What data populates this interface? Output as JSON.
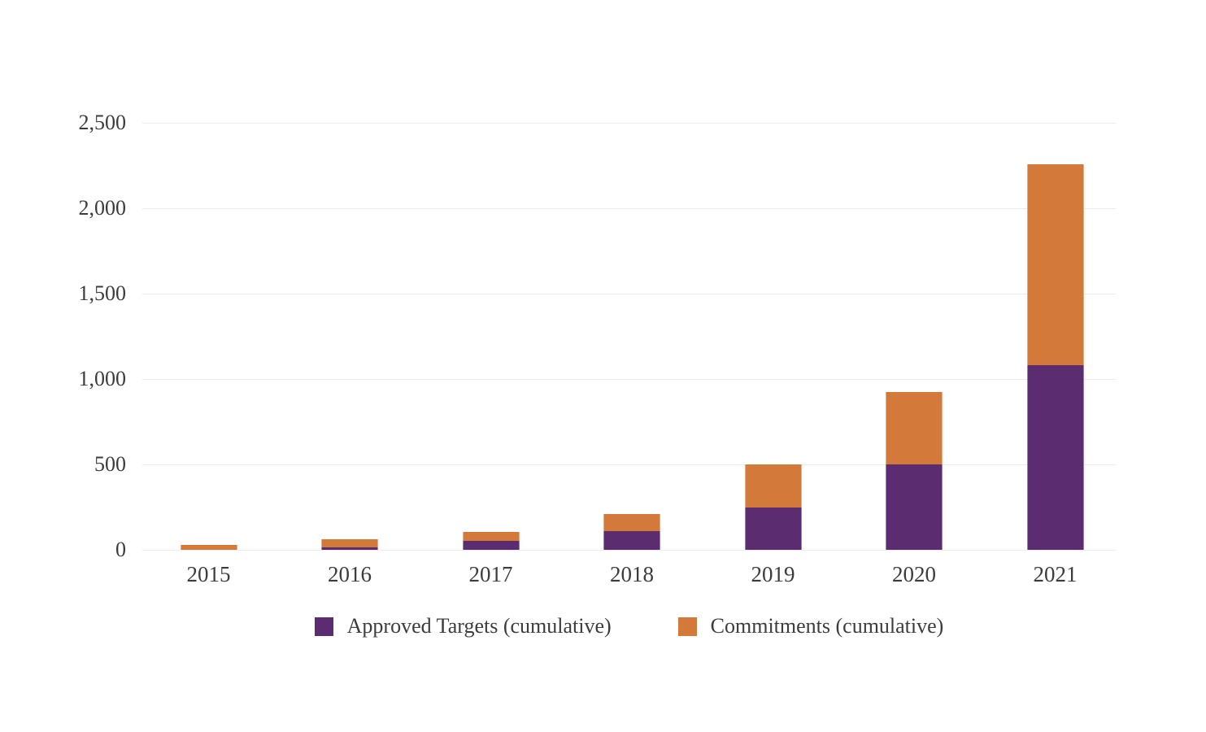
{
  "chart_data": {
    "type": "bar",
    "stacked": true,
    "title": "",
    "xlabel": "",
    "ylabel": "",
    "categories": [
      "2015",
      "2016",
      "2017",
      "2018",
      "2019",
      "2020",
      "2021"
    ],
    "series": [
      {
        "name": "Approved Targets (cumulative)",
        "color": "#5b2d70",
        "values": [
          0,
          12,
          52,
          108,
          250,
          500,
          1080
        ]
      },
      {
        "name": "Commitments (cumulative)",
        "color": "#d3793a",
        "values": [
          30,
          48,
          55,
          102,
          250,
          425,
          1175
        ]
      }
    ],
    "stack_totals": [
      30,
      60,
      107,
      210,
      500,
      925,
      2255
    ],
    "ylim": [
      0,
      2500
    ],
    "ytick_interval": 500,
    "ytick_labels": [
      "0",
      "500",
      "1,000",
      "1,500",
      "2,000",
      "2,500"
    ],
    "grid": "horizontal",
    "legend_position": "bottom"
  },
  "style": {
    "background_color": "#ffffff",
    "gridline_color": "#ececec",
    "text_color": "#3c3c3c",
    "approved_targets_color": "#5b2d70",
    "commitments_color": "#d3793a"
  }
}
